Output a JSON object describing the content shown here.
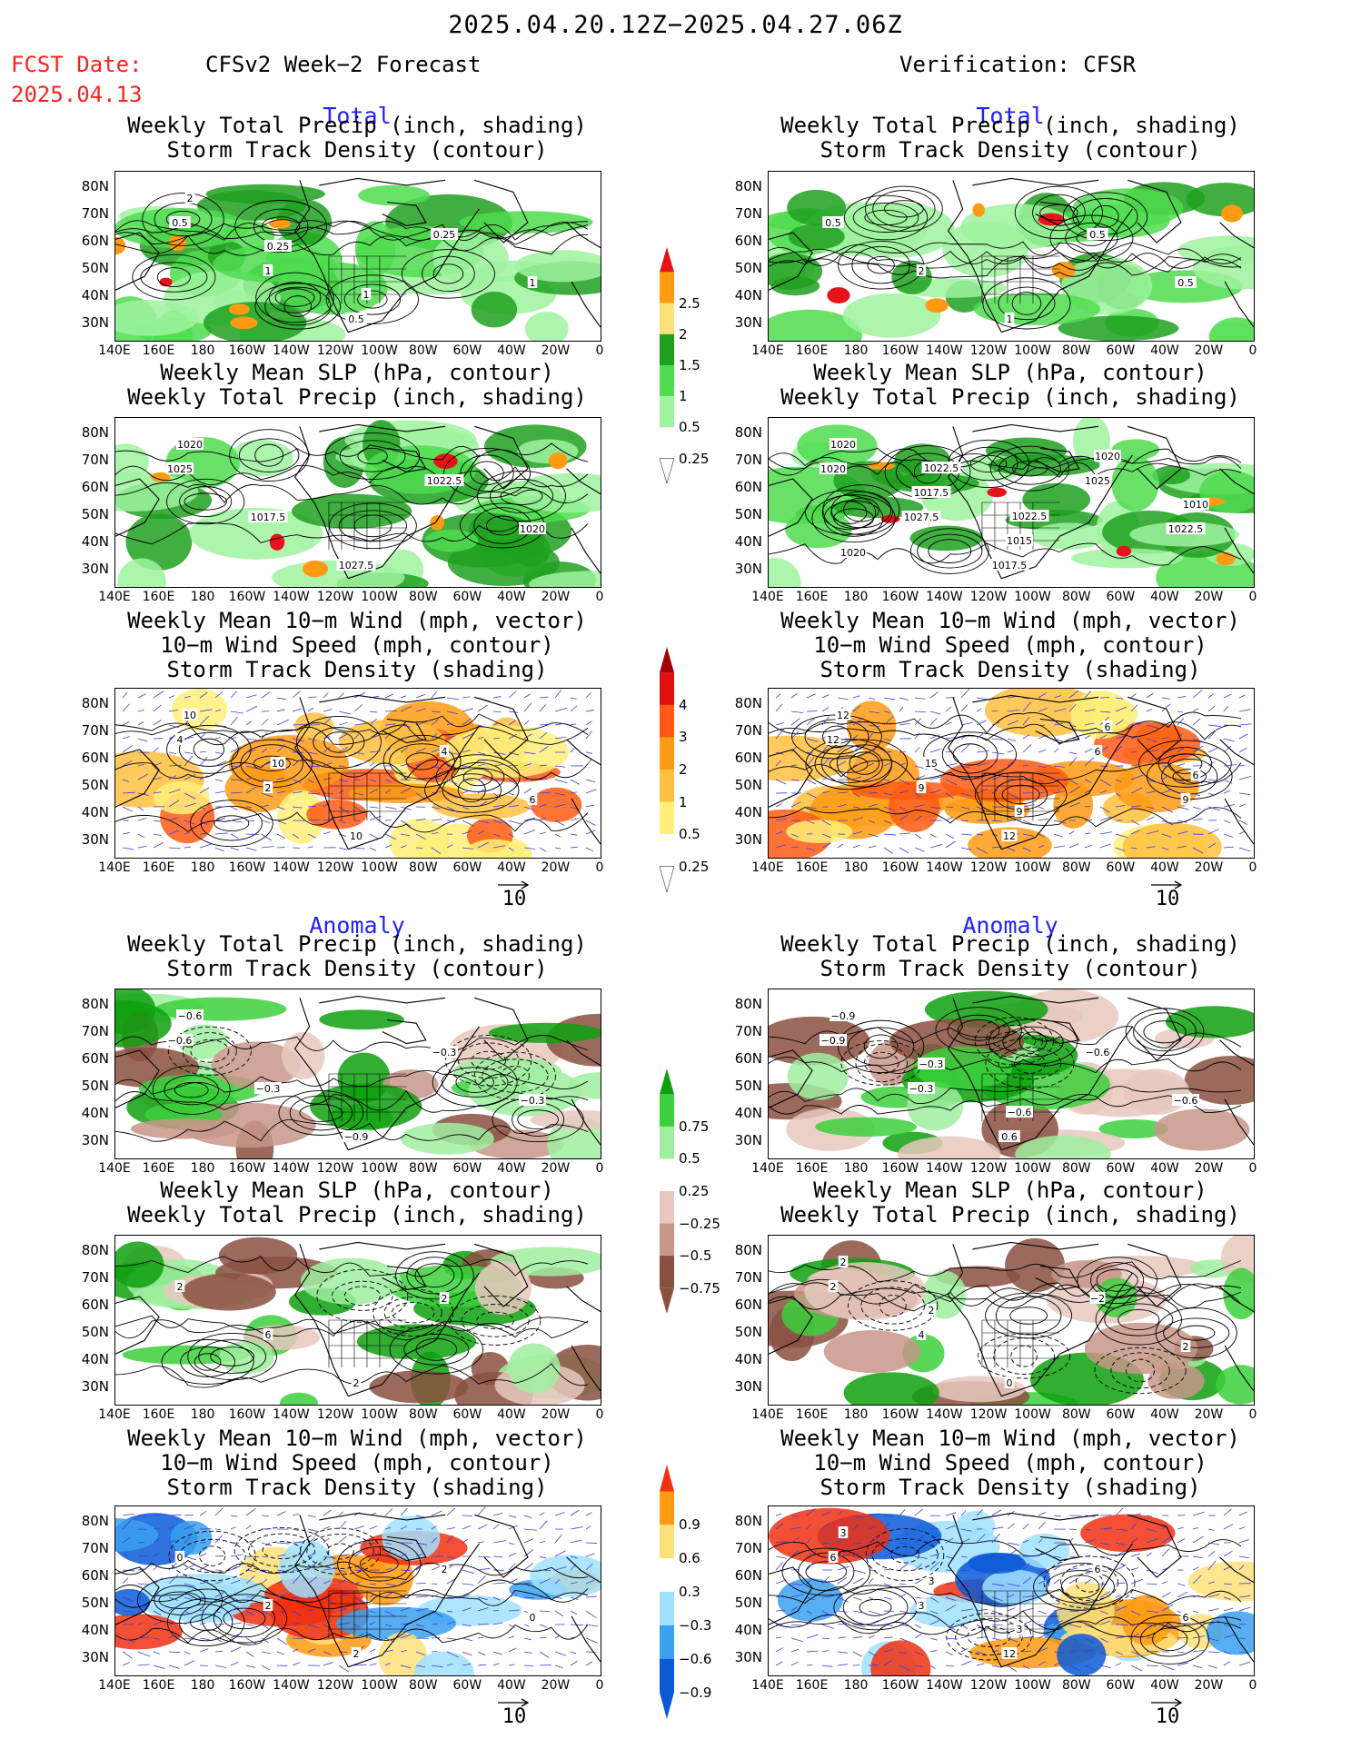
{
  "header": {
    "date_range": "2025.04.20.12Z−2025.04.27.06Z",
    "fcst_label": "FCST Date:",
    "fcst_date": "2025.04.13",
    "left_title": "CFSv2 Week−2 Forecast",
    "right_title": "Verification: CFSR"
  },
  "sections": {
    "total": "Total",
    "anomaly": "Anomaly"
  },
  "panel_titles": {
    "precip_storm": [
      "Weekly Total Precip (inch, shading)",
      "Storm Track Density (contour)"
    ],
    "slp_precip": [
      "Weekly Mean SLP (hPa, contour)",
      "Weekly Total Precip (inch, shading)"
    ],
    "wind": [
      "Weekly Mean 10−m Wind (mph, vector)",
      "10−m Wind Speed (mph, contour)",
      "Storm Track Density (shading)"
    ]
  },
  "axes": {
    "lat_labels": [
      "80N",
      "70N",
      "60N",
      "50N",
      "40N",
      "30N"
    ],
    "lon_labels": [
      "140E",
      "160E",
      "180",
      "160W",
      "140W",
      "120W",
      "100W",
      "80W",
      "60W",
      "40W",
      "20W",
      "0"
    ]
  },
  "vector_reference": "10",
  "colorbars": {
    "precip_total": {
      "labels": [
        "2.5",
        "2",
        "1.5",
        "1",
        "0.5",
        "0.25"
      ],
      "colors": [
        "#e8121a",
        "#ff9a12",
        "#ffe07a",
        "#1ea01e",
        "#4fdc4f",
        "#9ff29f",
        "#ffffff"
      ]
    },
    "storm_total": {
      "labels": [
        "4",
        "3",
        "2",
        "1",
        "0.5",
        "0.25"
      ],
      "colors": [
        "#a00000",
        "#e01010",
        "#ff5a14",
        "#ff9a14",
        "#ffc040",
        "#fff07a",
        "#ffffff"
      ]
    },
    "precip_anom": {
      "labels": [
        "0.75",
        "0.5",
        "0.25",
        "−0.25",
        "−0.5",
        "−0.75"
      ],
      "colors": [
        "#0ea00e",
        "#3cd03c",
        "#a0eea0",
        "#ffffff",
        "#e8c8be",
        "#c8968a",
        "#8a5040"
      ]
    },
    "storm_anom": {
      "labels": [
        "0.9",
        "0.6",
        "0.3",
        "−0.3",
        "−0.6",
        "−0.9"
      ],
      "colors": [
        "#f03010",
        "#ff9a12",
        "#ffe07a",
        "#ffffff",
        "#a0e0ff",
        "#3aa0f0",
        "#0a5ad8"
      ]
    }
  },
  "panels": [
    {
      "id": "fc-total-precip",
      "labels": [
        "0.5",
        "1",
        "0.5",
        "0.25",
        "1",
        "2",
        "0.25",
        "1"
      ]
    },
    {
      "id": "vf-total-precip",
      "labels": [
        "0.5",
        "2",
        "1",
        "0.5",
        "0.5"
      ]
    },
    {
      "id": "fc-total-slp",
      "labels": [
        "1025",
        "1017.5",
        "1027.5",
        "1022.5",
        "1020",
        "1020"
      ]
    },
    {
      "id": "vf-total-slp",
      "labels": [
        "1020",
        "1027.5",
        "1017.5",
        "1025",
        "1022.5",
        "1020",
        "1017.5",
        "1015",
        "1020",
        "1010",
        "1020",
        "1022.5",
        "1022.5"
      ]
    },
    {
      "id": "fc-total-wind",
      "labels": [
        "4",
        "2",
        "10",
        "4",
        "6",
        "10",
        "10"
      ]
    },
    {
      "id": "vf-total-wind",
      "labels": [
        "12",
        "9",
        "12",
        "6",
        "9",
        "12",
        "15",
        "9",
        "6",
        "6"
      ]
    },
    {
      "id": "fc-anom-precip",
      "labels": [
        "−0.6",
        "−0.3",
        "−0.9",
        "−0.3",
        "−0.3",
        "−0.6"
      ]
    },
    {
      "id": "vf-anom-precip",
      "labels": [
        "−0.9",
        "−0.3",
        "0.6",
        "−0.6",
        "−0.6",
        "−0.9",
        "−0.3",
        "−0.6"
      ]
    },
    {
      "id": "fc-anom-slp",
      "labels": [
        "2",
        "6",
        "2",
        "2"
      ]
    },
    {
      "id": "vf-anom-slp",
      "labels": [
        "2",
        "4",
        "0",
        "−2",
        "2",
        "2",
        "2"
      ]
    },
    {
      "id": "fc-anom-wind",
      "labels": [
        "0",
        "2",
        "2",
        "2",
        "0"
      ]
    },
    {
      "id": "vf-anom-wind",
      "labels": [
        "6",
        "3",
        "12",
        "6",
        "6",
        "3",
        "3",
        "3"
      ]
    }
  ]
}
